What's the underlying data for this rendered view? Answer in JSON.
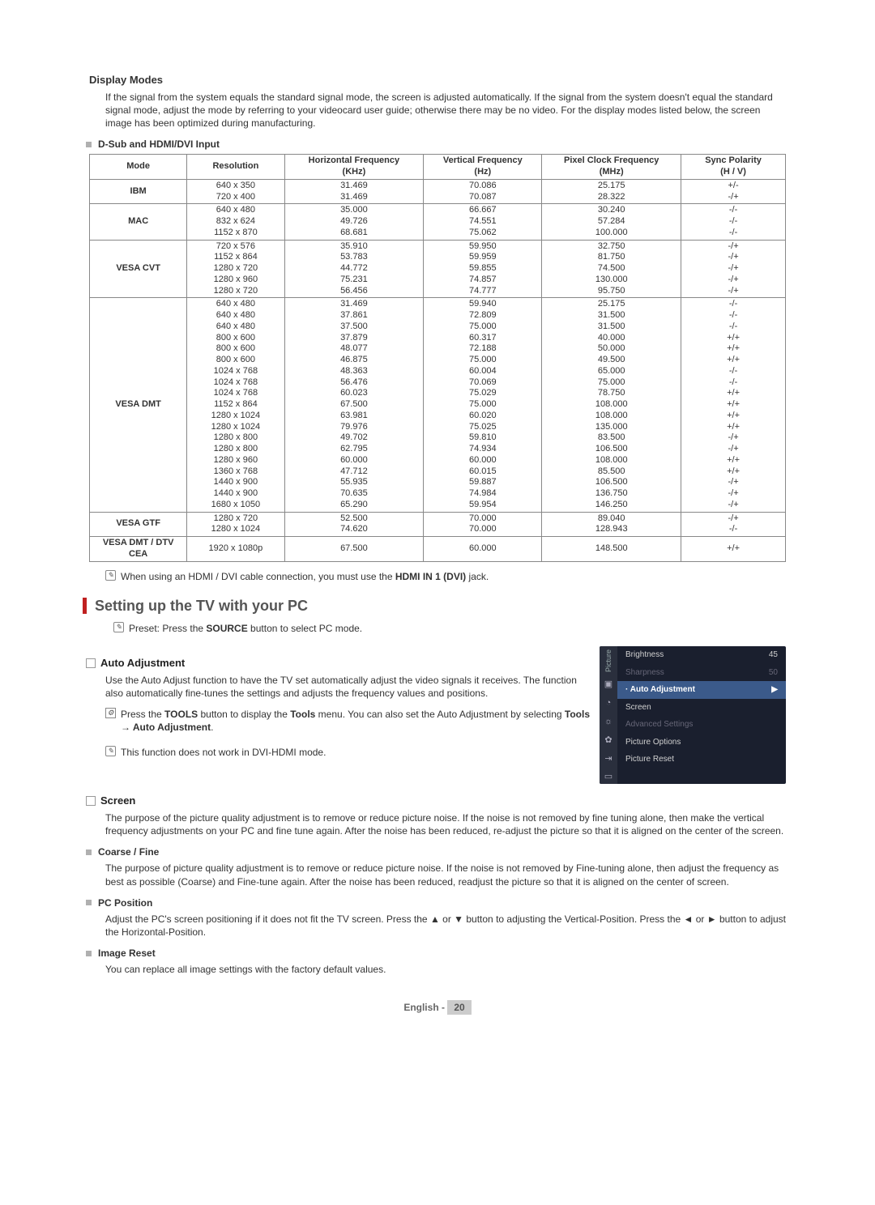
{
  "displayModes": {
    "title": "Display Modes",
    "intro": "If the signal from the system equals the standard signal mode, the screen is adjusted automatically. If the signal from the system doesn't equal the standard signal mode, adjust the mode by referring to your videocard user guide; otherwise there may be no video. For the display modes listed below, the screen image has been optimized during manufacturing.",
    "sub": "D-Sub and HDMI/DVI Input",
    "headers": [
      "Mode",
      "Resolution",
      "Horizontal Frequency (KHz)",
      "Vertical Frequency (Hz)",
      "Pixel Clock Frequency (MHz)",
      "Sync Polarity (H / V)"
    ],
    "rows": [
      {
        "mode": "IBM",
        "res": [
          "640 x 350",
          "720 x 400"
        ],
        "hf": [
          "31.469",
          "31.469"
        ],
        "vf": [
          "70.086",
          "70.087"
        ],
        "pc": [
          "25.175",
          "28.322"
        ],
        "sp": [
          "+/-",
          "-/+"
        ]
      },
      {
        "mode": "MAC",
        "res": [
          "640 x 480",
          "832 x 624",
          "1152 x 870"
        ],
        "hf": [
          "35.000",
          "49.726",
          "68.681"
        ],
        "vf": [
          "66.667",
          "74.551",
          "75.062"
        ],
        "pc": [
          "30.240",
          "57.284",
          "100.000"
        ],
        "sp": [
          "-/-",
          "-/-",
          "-/-"
        ]
      },
      {
        "mode": "VESA CVT",
        "res": [
          "720 x 576",
          "1152 x 864",
          "1280 x 720",
          "1280 x 960",
          "1280 x 720"
        ],
        "hf": [
          "35.910",
          "53.783",
          "44.772",
          "75.231",
          "56.456"
        ],
        "vf": [
          "59.950",
          "59.959",
          "59.855",
          "74.857",
          "74.777"
        ],
        "pc": [
          "32.750",
          "81.750",
          "74.500",
          "130.000",
          "95.750"
        ],
        "sp": [
          "-/+",
          "-/+",
          "-/+",
          "-/+",
          "-/+"
        ]
      },
      {
        "mode": "VESA DMT",
        "res": [
          "640 x 480",
          "640 x 480",
          "640 x 480",
          "800 x 600",
          "800 x 600",
          "800 x 600",
          "1024 x 768",
          "1024 x 768",
          "1024 x 768",
          "1152 x 864",
          "1280 x 1024",
          "1280 x 1024",
          "1280 x 800",
          "1280 x 800",
          "1280 x 960",
          "1360 x 768",
          "1440 x 900",
          "1440 x 900",
          "1680 x 1050"
        ],
        "hf": [
          "31.469",
          "37.861",
          "37.500",
          "37.879",
          "48.077",
          "46.875",
          "48.363",
          "56.476",
          "60.023",
          "67.500",
          "63.981",
          "79.976",
          "49.702",
          "62.795",
          "60.000",
          "47.712",
          "55.935",
          "70.635",
          "65.290"
        ],
        "vf": [
          "59.940",
          "72.809",
          "75.000",
          "60.317",
          "72.188",
          "75.000",
          "60.004",
          "70.069",
          "75.029",
          "75.000",
          "60.020",
          "75.025",
          "59.810",
          "74.934",
          "60.000",
          "60.015",
          "59.887",
          "74.984",
          "59.954"
        ],
        "pc": [
          "25.175",
          "31.500",
          "31.500",
          "40.000",
          "50.000",
          "49.500",
          "65.000",
          "75.000",
          "78.750",
          "108.000",
          "108.000",
          "135.000",
          "83.500",
          "106.500",
          "108.000",
          "85.500",
          "106.500",
          "136.750",
          "146.250"
        ],
        "sp": [
          "-/-",
          "-/-",
          "-/-",
          "+/+",
          "+/+",
          "+/+",
          "-/-",
          "-/-",
          "+/+",
          "+/+",
          "+/+",
          "+/+",
          "-/+",
          "-/+",
          "+/+",
          "+/+",
          "-/+",
          "-/+",
          "-/+"
        ]
      },
      {
        "mode": "VESA GTF",
        "res": [
          "1280 x 720",
          "1280 x 1024"
        ],
        "hf": [
          "52.500",
          "74.620"
        ],
        "vf": [
          "70.000",
          "70.000"
        ],
        "pc": [
          "89.040",
          "128.943"
        ],
        "sp": [
          "-/+",
          "-/-"
        ]
      },
      {
        "mode": "VESA DMT / DTV CEA",
        "res": [
          "1920 x 1080p"
        ],
        "hf": [
          "67.500"
        ],
        "vf": [
          "60.000"
        ],
        "pc": [
          "148.500"
        ],
        "sp": [
          "+/+"
        ]
      }
    ],
    "note_prefix": "When using an HDMI / DVI cable connection, you must use the ",
    "note_bold": "HDMI IN 1 (DVI)",
    "note_suffix": " jack."
  },
  "setupPC": {
    "heading": "Setting up the TV with your PC",
    "preset_prefix": "Preset: Press the ",
    "preset_bold": "SOURCE",
    "preset_suffix": " button to select PC mode."
  },
  "autoAdj": {
    "title": "Auto Adjustment",
    "body": "Use the Auto Adjust function to have the TV set automatically adjust the video signals it receives. The function also automatically fine-tunes the settings and adjusts the frequency values and positions.",
    "tool_p1": "Press the ",
    "tool_b1": "TOOLS",
    "tool_p2": " button to display the ",
    "tool_b2": "Tools",
    "tool_p3": " menu. You can also set the Auto Adjustment by selecting ",
    "tool_b3": "Tools → Auto Adjustment",
    "tool_p4": ".",
    "note2": "This function does not work in DVI-HDMI mode."
  },
  "osd": {
    "sideLabel": "Picture",
    "row1_l": "Brightness",
    "row1_r": "45",
    "row2_l": "Sharpness",
    "row2_r": "50",
    "row3_l": "Auto Adjustment",
    "row3_r": "▶",
    "row4": "Screen",
    "row5": "Advanced Settings",
    "row6": "Picture Options",
    "row7": "Picture Reset"
  },
  "screen": {
    "title": "Screen",
    "intro": "The purpose of the picture quality adjustment is to remove or reduce picture noise. If the noise is not removed by fine tuning alone, then make the vertical frequency adjustments on your PC and fine tune again. After the noise has been reduced, re-adjust the picture so that it is aligned on the center of the screen.",
    "coarse_t": "Coarse / Fine",
    "coarse_b": "The purpose of picture quality adjustment is to remove or reduce picture noise. If the noise is not removed by Fine-tuning alone, then adjust the frequency as best as possible (Coarse) and Fine-tune again. After the noise has been reduced, readjust the picture so that it is aligned on the center of screen.",
    "pcpos_t": "PC Position",
    "pcpos_b": "Adjust the PC's screen positioning if it does not fit the TV screen. Press the ▲ or ▼ button to adjusting the Vertical-Position. Press the ◄ or ► button to adjust the Horizontal-Position.",
    "imgr_t": "Image Reset",
    "imgr_b": "You can replace all image settings with the factory default values."
  },
  "footer": {
    "lang": "English - ",
    "page": "20"
  },
  "colors": {
    "accent": "#c02020",
    "osdBg": "#1a1f2e",
    "osdHi": "#3b5a8a"
  }
}
